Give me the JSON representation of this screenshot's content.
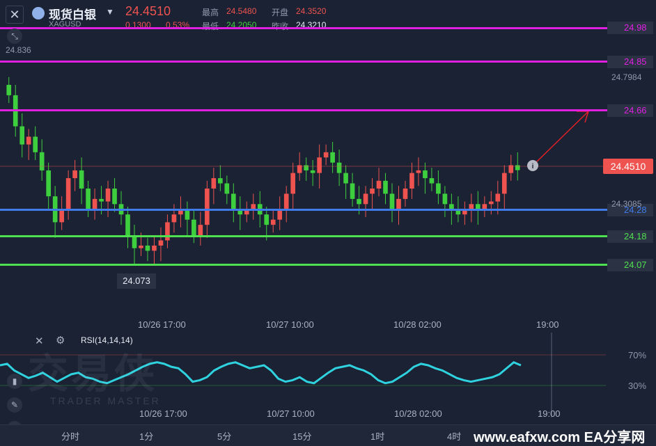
{
  "header": {
    "close_icon": "close-icon",
    "symbol_name": "现货白银",
    "symbol_code": "XAGUSD",
    "price": "24.4510",
    "change": "0.1300",
    "change_pct": "0.53%",
    "high_label": "最高",
    "high_value": "24.5480",
    "open_label": "开盘",
    "open_value": "24.3520",
    "low_label": "最低",
    "low_value": "24.2050",
    "prev_close_label": "昨收",
    "prev_close_value": "24.3210"
  },
  "axis": {
    "top_left_value": "24.836",
    "right_upper_value": "24.7984",
    "right_lower_value": "24.3085",
    "current_price_tag": "24.4510",
    "low_callout": "24.073"
  },
  "levels": [
    {
      "value": "24.98",
      "color": "#e020e0"
    },
    {
      "value": "24.85",
      "color": "#e020e0"
    },
    {
      "value": "24.66",
      "color": "#e020e0"
    },
    {
      "value": "24.28",
      "color": "#3f7bea"
    },
    {
      "value": "24.18",
      "color": "#4fe04f"
    },
    {
      "value": "24.07",
      "color": "#4fe04f"
    }
  ],
  "time_labels": {
    "t1": "10/26 17:00",
    "t2": "10/27 10:00",
    "t3": "10/28 02:00",
    "t4": "19:00"
  },
  "rsi": {
    "title": "RSI(14,14,14)",
    "level_high": "70%",
    "level_low": "30%",
    "close_icon": "close-icon",
    "settings_icon": "gear-icon"
  },
  "watermark": {
    "main": "交易侠",
    "sub": "TRADER MASTER"
  },
  "tabs": [
    "分时",
    "1分",
    "5分",
    "15分",
    "1时",
    "4时"
  ],
  "brand": "www.eafxw.com  EA分享网",
  "colors": {
    "up": "#ef5350",
    "down": "#3ecf3e",
    "rsi_line": "#2fd3e0",
    "background": "#1b2233"
  },
  "chart_data": {
    "type": "candlestick",
    "title": "现货白银 XAGUSD",
    "x_ticks": [
      "10/26 17:00",
      "10/27 10:00",
      "10/28 02:00",
      "19:00"
    ],
    "ylim": [
      23.98,
      25.0
    ],
    "horizontal_levels": [
      24.98,
      24.85,
      24.66,
      24.28,
      24.18,
      24.07
    ],
    "series": [
      {
        "name": "close",
        "values": [
          24.74,
          24.62,
          24.55,
          24.58,
          24.52,
          24.45,
          24.35,
          24.25,
          24.3,
          24.42,
          24.45,
          24.38,
          24.3,
          24.34,
          24.33,
          24.38,
          24.32,
          24.28,
          24.2,
          24.15,
          24.16,
          24.14,
          24.16,
          24.18,
          24.25,
          24.28,
          24.3,
          24.26,
          24.2,
          24.24,
          24.38,
          24.42,
          24.4,
          24.36,
          24.3,
          24.28,
          24.3,
          24.32,
          24.28,
          24.24,
          24.26,
          24.3,
          24.36,
          24.44,
          24.47,
          24.45,
          24.44,
          24.5,
          24.52,
          24.48,
          24.44,
          24.4,
          24.34,
          24.32,
          24.36,
          24.38,
          24.41,
          24.36,
          24.3,
          24.34,
          24.38,
          24.44,
          24.45,
          24.42,
          24.4,
          24.36,
          24.32,
          24.3,
          24.28,
          24.3,
          24.32,
          24.3,
          24.32,
          24.33,
          24.36,
          24.44,
          24.47,
          24.451
        ]
      },
      {
        "name": "RSI",
        "values": [
          62,
          64,
          55,
          50,
          45,
          48,
          52,
          46,
          40,
          45,
          50,
          52,
          46,
          44,
          40,
          38,
          42,
          46,
          50,
          55,
          60,
          64,
          66,
          64,
          60,
          58,
          50,
          40,
          42,
          46,
          55,
          60,
          64,
          66,
          62,
          58,
          60,
          62,
          55,
          44,
          40,
          42,
          46,
          40,
          38,
          45,
          52,
          58,
          60,
          62,
          58,
          55,
          50,
          42,
          38,
          40,
          46,
          52,
          60,
          64,
          62,
          58,
          55,
          50,
          45,
          42,
          40,
          42,
          44,
          46,
          50,
          58,
          66,
          62
        ]
      }
    ]
  }
}
